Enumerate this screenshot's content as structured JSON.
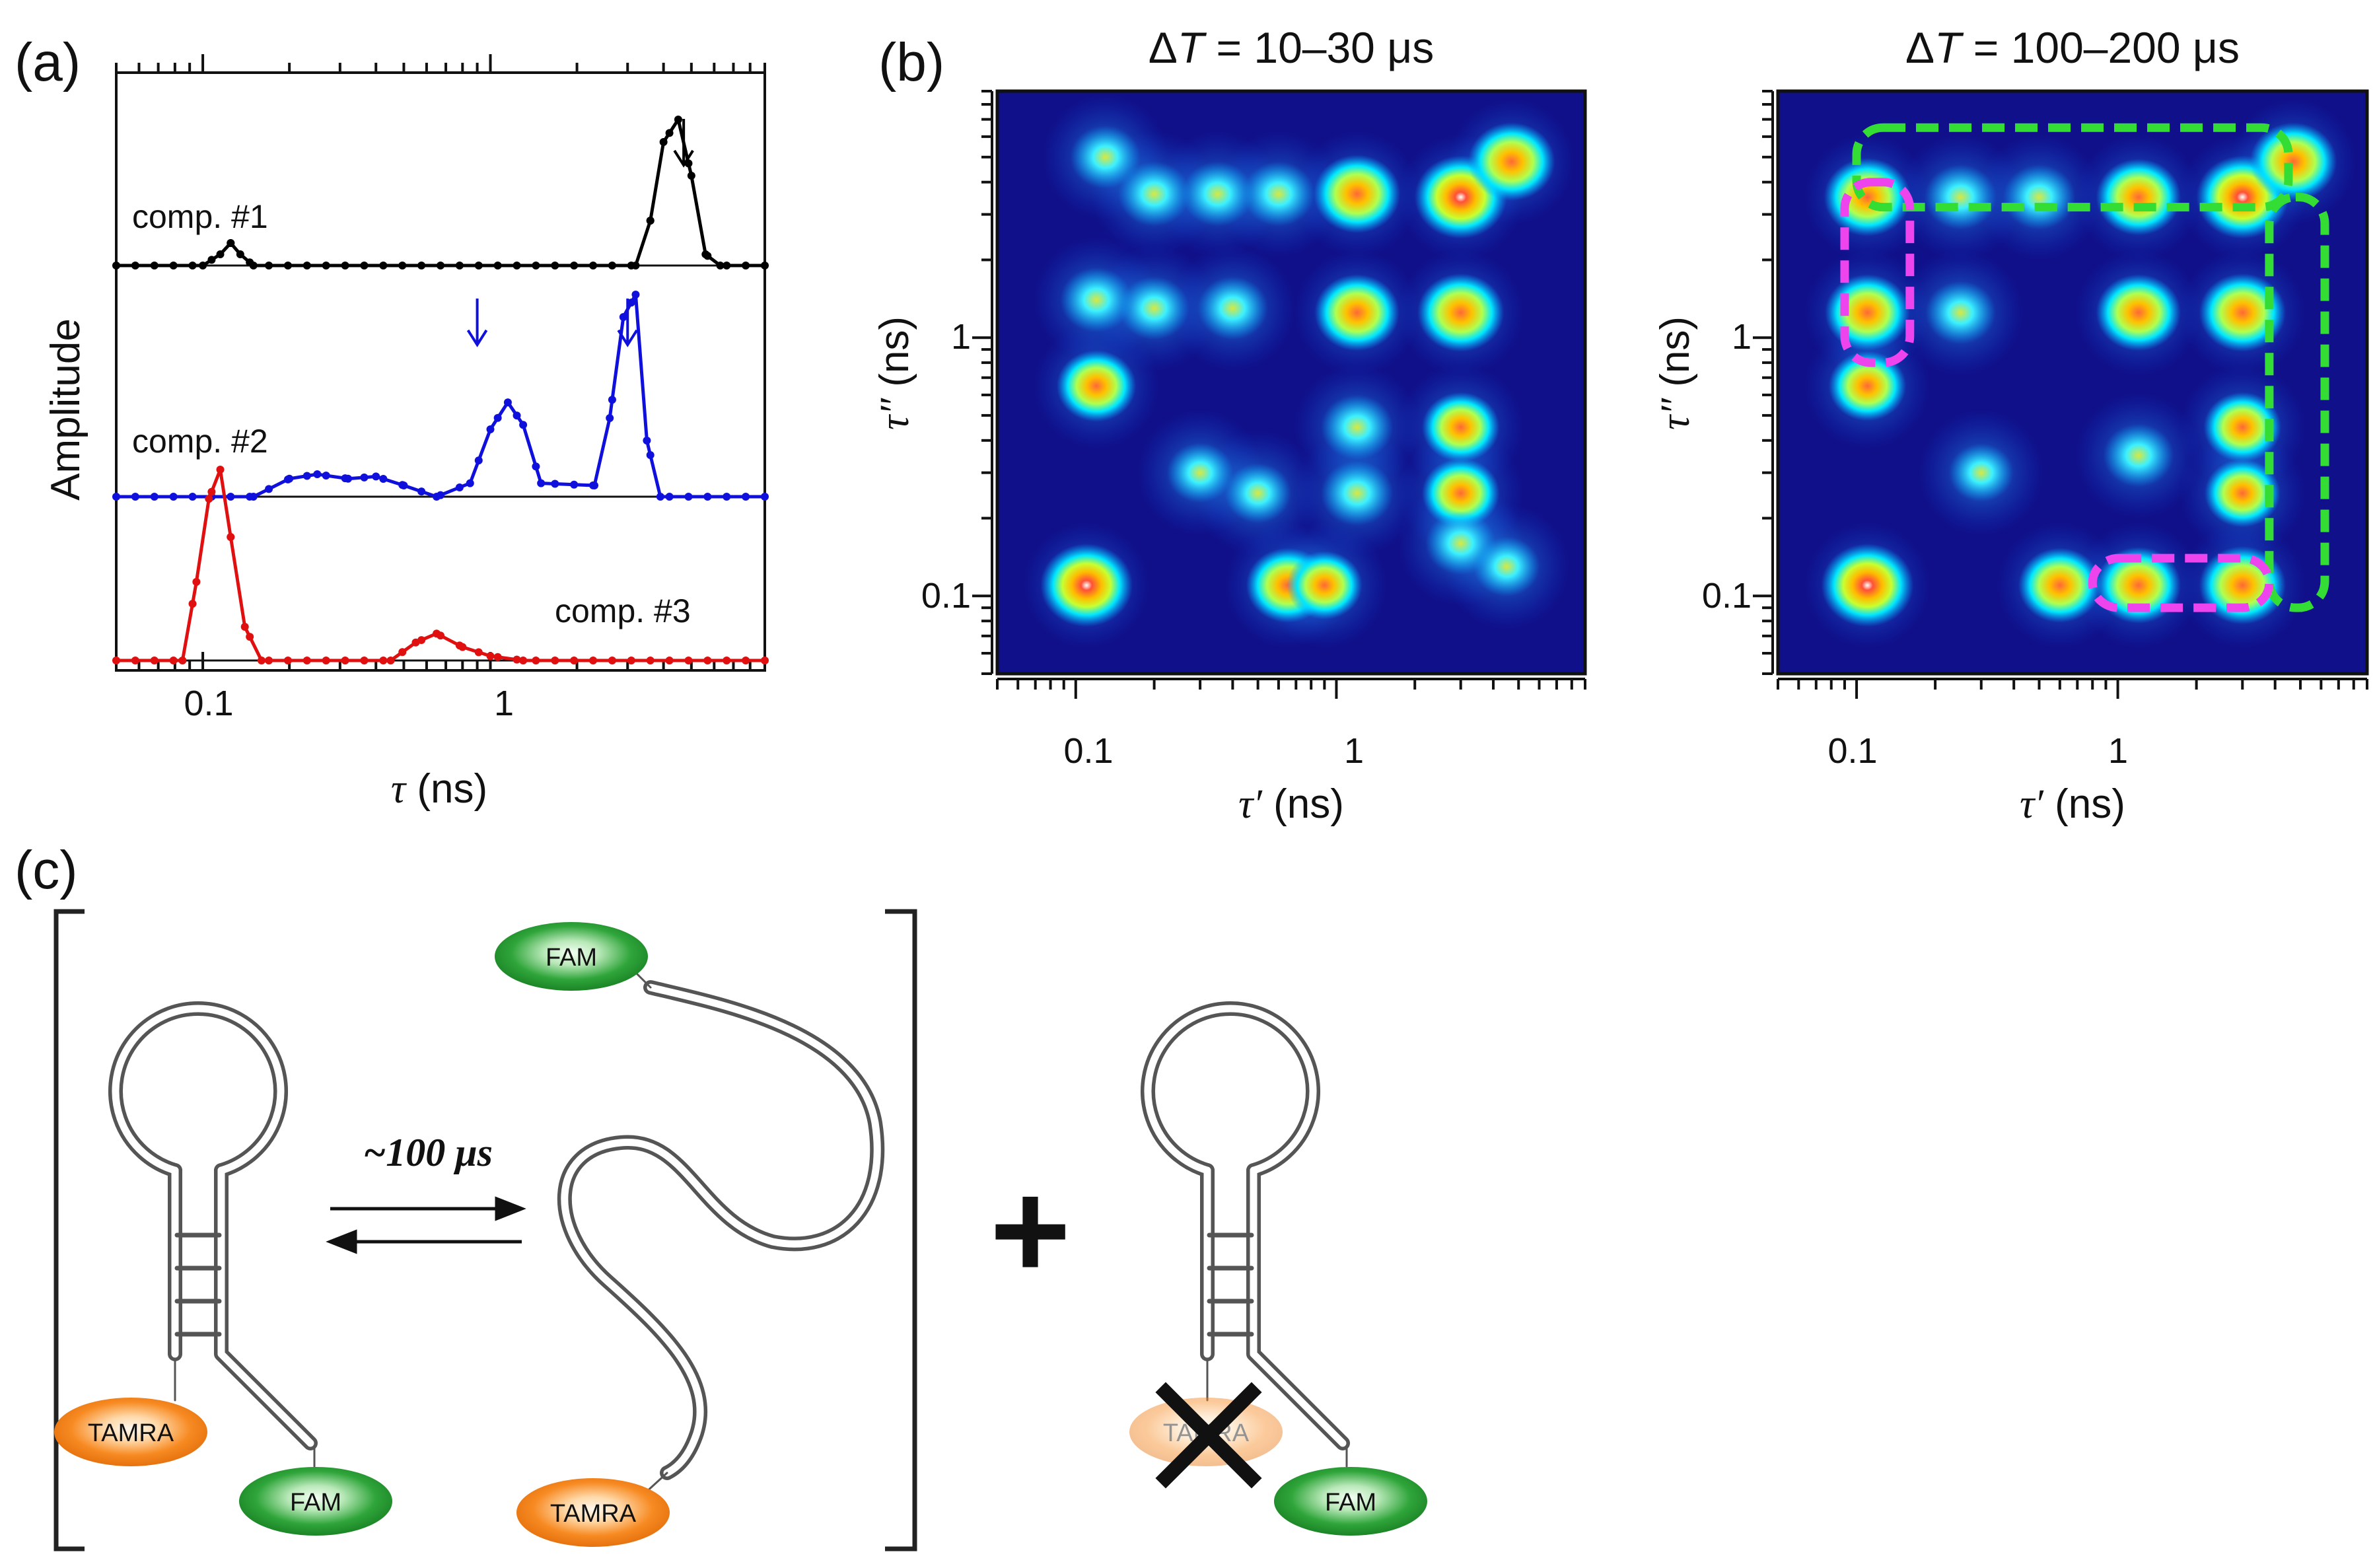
{
  "panels": {
    "a": {
      "label": "(a)",
      "xlabel_sym": "τ",
      "xlabel_unit": " (ns)",
      "ylabel": "Amplitude",
      "xticks": [
        "0.1",
        "1"
      ]
    },
    "b": {
      "label": "(b)",
      "map1_title_prefix": "Δ",
      "map1_title_T": "T",
      "map1_title_rest": " = 10–30 μs",
      "map2_title_prefix": "Δ",
      "map2_title_T": "T",
      "map2_title_rest": " = 100–200 μs",
      "xlabel_sym": "τ′",
      "xlabel_unit": " (ns)",
      "ylabel_sym": "τ″",
      "ylabel_unit": " (ns)",
      "xticks": [
        "0.1",
        "1"
      ],
      "yticks": [
        "0.1",
        "1"
      ]
    },
    "c": {
      "label": "(c)",
      "rate_label": "~100 μs",
      "plus": "+",
      "dyes": {
        "fam": "FAM",
        "tamra": "TAMRA",
        "tamra_crossed": "TAMRA"
      }
    }
  },
  "chart_data": [
    {
      "type": "line",
      "title": "",
      "xlabel": "τ (ns)",
      "ylabel": "Amplitude",
      "xscale": "log",
      "xlim": [
        0.05,
        9
      ],
      "series": [
        {
          "name": "comp. #1",
          "color": "#000000",
          "arrows_at_ns": [
            4.7
          ],
          "x": [
            0.1,
            0.115,
            0.125,
            0.135,
            0.15,
            3.2,
            3.6,
            4.0,
            4.5,
            5.0,
            5.6,
            6.3
          ],
          "values": [
            0,
            0.05,
            0.1,
            0.05,
            0,
            0,
            0.2,
            0.55,
            0.65,
            0.4,
            0.05,
            0
          ]
        },
        {
          "name": "comp. #2",
          "color": "#1010dd",
          "arrows_at_ns": [
            0.9,
            3.0
          ],
          "x": [
            0.15,
            0.2,
            0.25,
            0.32,
            0.4,
            0.5,
            0.65,
            0.85,
            1.0,
            1.15,
            1.3,
            1.5,
            2.3,
            2.6,
            2.9,
            3.2,
            3.5,
            3.9
          ],
          "values": [
            0,
            0.08,
            0.1,
            0.08,
            0.09,
            0.05,
            0.0,
            0.06,
            0.3,
            0.42,
            0.32,
            0.06,
            0.05,
            0.35,
            0.8,
            0.9,
            0.25,
            0
          ]
        },
        {
          "name": "comp. #3",
          "color": "#e01010",
          "arrows_at_ns": [],
          "x": [
            0.085,
            0.095,
            0.105,
            0.115,
            0.125,
            0.14,
            0.16,
            0.45,
            0.55,
            0.65,
            0.8,
            1.0,
            1.3
          ],
          "values": [
            0,
            0.35,
            0.72,
            0.85,
            0.55,
            0.15,
            0,
            0,
            0.08,
            0.12,
            0.06,
            0.02,
            0
          ]
        }
      ]
    },
    {
      "type": "heatmap",
      "title": "ΔT = 10–30 μs",
      "xlabel": "τ′ (ns)",
      "ylabel": "τ″ (ns)",
      "xscale": "log",
      "yscale": "log",
      "xlim": [
        0.05,
        9
      ],
      "ylim": [
        0.05,
        9
      ],
      "peaks": [
        {
          "x": 0.11,
          "y": 0.11,
          "intensity": 1.0
        },
        {
          "x": 0.12,
          "y": 0.65,
          "intensity": 0.65
        },
        {
          "x": 0.12,
          "y": 1.4,
          "intensity": 0.45
        },
        {
          "x": 0.13,
          "y": 5.0,
          "intensity": 0.4
        },
        {
          "x": 0.2,
          "y": 3.6,
          "intensity": 0.45
        },
        {
          "x": 0.35,
          "y": 3.6,
          "intensity": 0.45
        },
        {
          "x": 0.6,
          "y": 3.6,
          "intensity": 0.45
        },
        {
          "x": 1.2,
          "y": 3.6,
          "intensity": 0.85
        },
        {
          "x": 3.0,
          "y": 3.5,
          "intensity": 1.0
        },
        {
          "x": 4.7,
          "y": 4.8,
          "intensity": 0.85
        },
        {
          "x": 0.2,
          "y": 1.3,
          "intensity": 0.4
        },
        {
          "x": 0.4,
          "y": 1.3,
          "intensity": 0.4
        },
        {
          "x": 1.2,
          "y": 1.25,
          "intensity": 0.8
        },
        {
          "x": 3.0,
          "y": 1.25,
          "intensity": 0.85
        },
        {
          "x": 0.3,
          "y": 0.3,
          "intensity": 0.3
        },
        {
          "x": 0.5,
          "y": 0.25,
          "intensity": 0.3
        },
        {
          "x": 1.2,
          "y": 0.45,
          "intensity": 0.45
        },
        {
          "x": 1.2,
          "y": 0.25,
          "intensity": 0.45
        },
        {
          "x": 3.0,
          "y": 0.45,
          "intensity": 0.6
        },
        {
          "x": 3.0,
          "y": 0.25,
          "intensity": 0.6
        },
        {
          "x": 0.65,
          "y": 0.11,
          "intensity": 0.75
        },
        {
          "x": 0.9,
          "y": 0.11,
          "intensity": 0.55
        },
        {
          "x": 3.0,
          "y": 0.16,
          "intensity": 0.4
        },
        {
          "x": 4.5,
          "y": 0.13,
          "intensity": 0.3
        }
      ]
    },
    {
      "type": "heatmap",
      "title": "ΔT = 100–200 μs",
      "xlabel": "τ′ (ns)",
      "ylabel": "τ″ (ns)",
      "xscale": "log",
      "yscale": "log",
      "xlim": [
        0.05,
        9
      ],
      "ylim": [
        0.05,
        9
      ],
      "peaks": [
        {
          "x": 0.11,
          "y": 0.11,
          "intensity": 1.0
        },
        {
          "x": 0.11,
          "y": 0.65,
          "intensity": 0.6
        },
        {
          "x": 0.11,
          "y": 1.25,
          "intensity": 0.8
        },
        {
          "x": 0.11,
          "y": 3.5,
          "intensity": 0.85
        },
        {
          "x": 0.25,
          "y": 3.5,
          "intensity": 0.45
        },
        {
          "x": 0.5,
          "y": 3.5,
          "intensity": 0.45
        },
        {
          "x": 1.2,
          "y": 3.5,
          "intensity": 0.8
        },
        {
          "x": 3.0,
          "y": 3.5,
          "intensity": 1.0
        },
        {
          "x": 4.7,
          "y": 4.8,
          "intensity": 0.85
        },
        {
          "x": 0.25,
          "y": 1.25,
          "intensity": 0.4
        },
        {
          "x": 1.2,
          "y": 1.25,
          "intensity": 0.8
        },
        {
          "x": 3.0,
          "y": 1.25,
          "intensity": 0.85
        },
        {
          "x": 1.2,
          "y": 0.35,
          "intensity": 0.4
        },
        {
          "x": 3.0,
          "y": 0.45,
          "intensity": 0.6
        },
        {
          "x": 3.0,
          "y": 0.25,
          "intensity": 0.55
        },
        {
          "x": 0.3,
          "y": 0.3,
          "intensity": 0.25
        },
        {
          "x": 0.6,
          "y": 0.11,
          "intensity": 0.75
        },
        {
          "x": 1.2,
          "y": 0.11,
          "intensity": 0.8
        },
        {
          "x": 3.0,
          "y": 0.11,
          "intensity": 0.85
        }
      ],
      "annotations": [
        {
          "shape": "dashed-box",
          "color": "#33dd33",
          "x_range": [
            0.1,
            4.5
          ],
          "y_range": [
            3.2,
            6.5
          ]
        },
        {
          "shape": "dashed-box",
          "color": "#33dd33",
          "x_range": [
            3.8,
            6.2
          ],
          "y_range": [
            0.09,
            3.5
          ]
        },
        {
          "shape": "dashed-box",
          "color": "#ee44ee",
          "x_range": [
            0.09,
            0.16
          ],
          "y_range": [
            0.8,
            4.0
          ]
        },
        {
          "shape": "dashed-box",
          "color": "#ee44ee",
          "x_range": [
            0.8,
            3.8
          ],
          "y_range": [
            0.09,
            0.14
          ]
        }
      ]
    }
  ],
  "colors": {
    "comp1": "#000000",
    "comp2": "#1010dd",
    "comp3": "#e01010",
    "heat_bg": "#10108a",
    "box_green": "#33dd33",
    "box_magenta": "#ee44ee",
    "fam": "#1a8f2a",
    "tamra": "#f07d14"
  }
}
